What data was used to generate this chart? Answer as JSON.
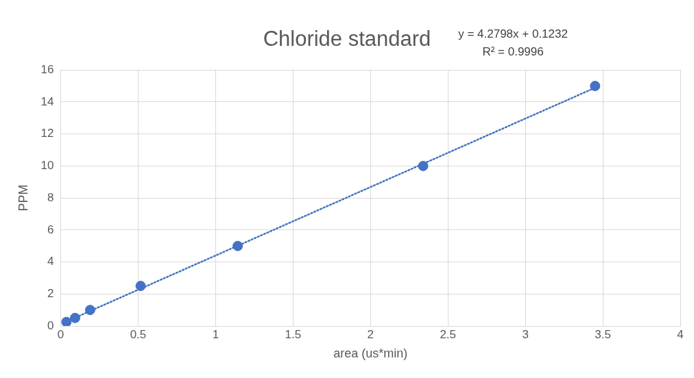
{
  "chart_data": {
    "type": "scatter",
    "title": "Chloride standard",
    "xlabel": "area (us*min)",
    "ylabel": "PPM",
    "x": [
      0.037,
      0.093,
      0.19,
      0.516,
      1.143,
      2.34,
      3.45
    ],
    "series": [
      {
        "color": "#4472c4",
        "values": [
          0.25,
          0.5,
          1,
          2.5,
          5,
          10,
          15
        ],
        "marker": "circle"
      },
      {
        "type": "line",
        "color": "#4472c4",
        "x": [
          0.037,
          3.45
        ],
        "values": [
          0.28,
          14.89
        ],
        "line_style": "dotted",
        "marker": "none"
      }
    ],
    "xlim": [
      0,
      4
    ],
    "xticks": [
      0,
      0.5,
      1,
      1.5,
      2,
      2.5,
      3,
      3.5,
      4
    ],
    "ylim": [
      0,
      16
    ],
    "yticks": [
      0,
      2,
      4,
      6,
      8,
      10,
      12,
      14,
      16
    ],
    "grid": true,
    "legend": false,
    "annotations": [
      "y = 4.2798x + 0.1232",
      "R² = 0.9996"
    ]
  }
}
